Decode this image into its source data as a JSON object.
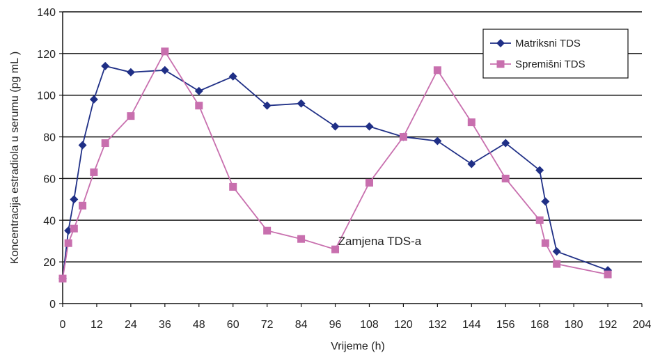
{
  "chart_data": {
    "type": "line",
    "title": "",
    "xlabel": "Vrijeme (h)",
    "ylabel": "Koncentracija estradiola u serumu (pg mL )",
    "xlim": [
      0,
      204
    ],
    "ylim": [
      0,
      140
    ],
    "x_ticks": [
      0,
      12,
      24,
      36,
      48,
      60,
      72,
      84,
      96,
      108,
      120,
      132,
      144,
      156,
      168,
      180,
      192,
      204
    ],
    "y_ticks": [
      0,
      20,
      40,
      60,
      80,
      100,
      120,
      140
    ],
    "grid": "horizontal",
    "legend_position": "top-right",
    "series": [
      {
        "name": "Matriksni TDS",
        "color": "#1f2f86",
        "marker": "diamond",
        "x": [
          0,
          2,
          4,
          7,
          11,
          15,
          24,
          36,
          48,
          60,
          72,
          84,
          96,
          108,
          120,
          132,
          144,
          156,
          168,
          170,
          174,
          192
        ],
        "y": [
          12,
          35,
          50,
          76,
          98,
          114,
          111,
          112,
          102,
          109,
          95,
          96,
          85,
          85,
          80,
          78,
          67,
          77,
          64,
          49,
          25,
          16
        ]
      },
      {
        "name": "Spremišni TDS",
        "color": "#c86fae",
        "marker": "square",
        "x": [
          0,
          2,
          4,
          7,
          11,
          15,
          24,
          36,
          48,
          60,
          72,
          84,
          96,
          108,
          120,
          132,
          144,
          156,
          168,
          170,
          174,
          192
        ],
        "y": [
          12,
          29,
          36,
          47,
          63,
          77,
          90,
          121,
          95,
          56,
          35,
          31,
          26,
          58,
          80,
          112,
          87,
          60,
          40,
          29,
          19,
          14
        ]
      }
    ],
    "annotations": [
      {
        "text": "Zamjena TDS-a",
        "x": 97,
        "y": 28
      }
    ]
  }
}
